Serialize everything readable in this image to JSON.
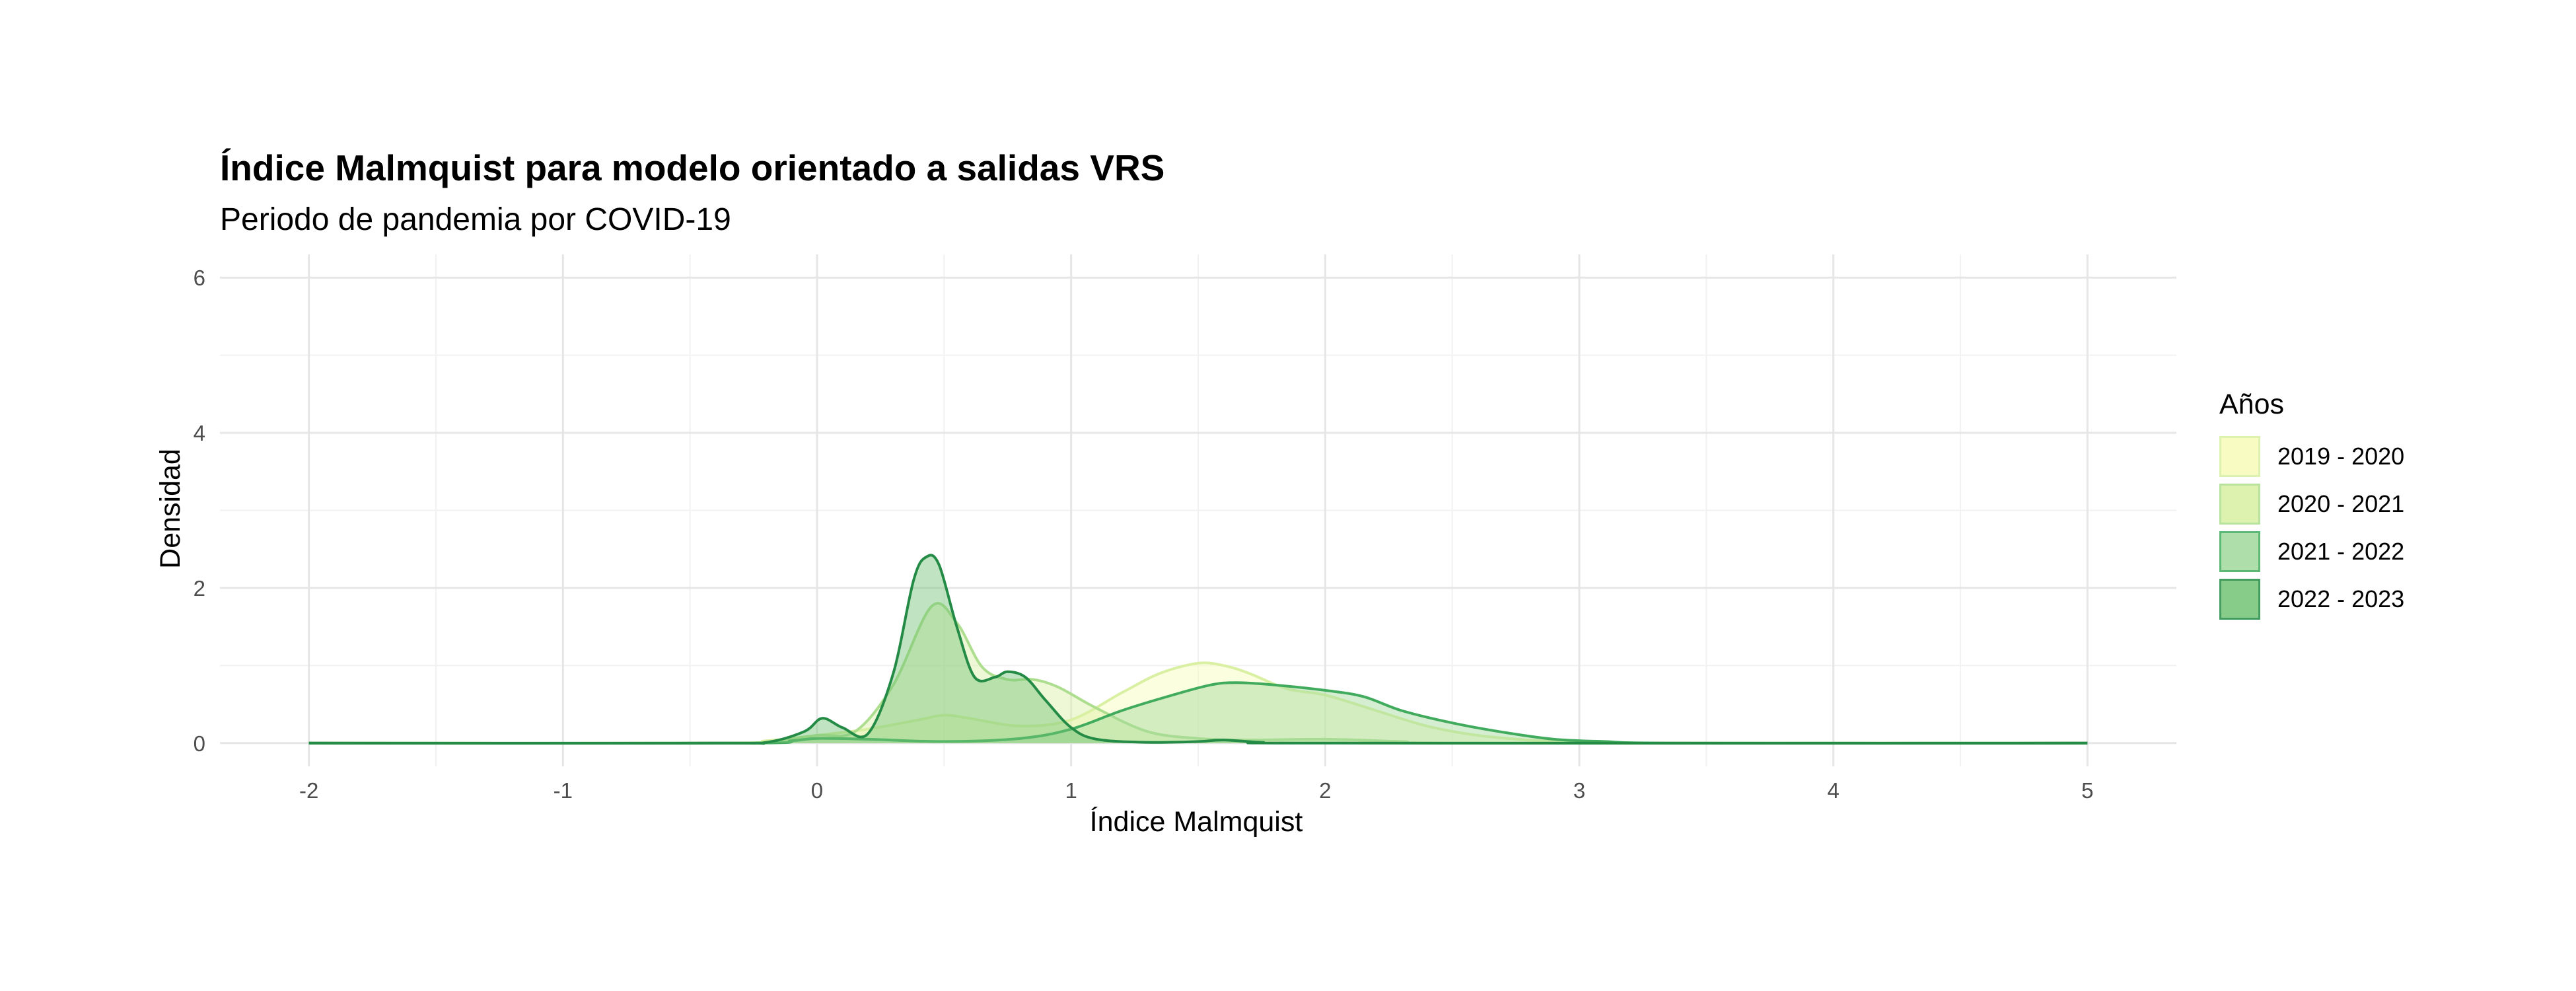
{
  "chart_data": {
    "type": "area",
    "title": "Índice Malmquist para modelo orientado a salidas VRS",
    "subtitle": "Periodo de pandemia por COVID-19",
    "xlabel": "Índice Malmquist",
    "ylabel": "Densidad",
    "xlim": [
      -2.35,
      5.35
    ],
    "ylim": [
      -0.3,
      6.3
    ],
    "x_ticks": [
      "-2",
      "-1",
      "0",
      "1",
      "2",
      "3",
      "4",
      "5"
    ],
    "y_ticks": [
      "0",
      "2",
      "4",
      "6"
    ],
    "grid": true,
    "legend_title": "Años",
    "legend_position": "right",
    "series": [
      {
        "name": "2019 - 2020",
        "line_color": "#d9f0a3",
        "fill_color": "#f7fcb9",
        "points": [
          [
            -2,
            0
          ],
          [
            -0.4,
            0
          ],
          [
            -0.2,
            0.03
          ],
          [
            0,
            0.1
          ],
          [
            0.2,
            0.18
          ],
          [
            0.4,
            0.3
          ],
          [
            0.5,
            0.36
          ],
          [
            0.6,
            0.32
          ],
          [
            0.8,
            0.22
          ],
          [
            1.0,
            0.3
          ],
          [
            1.2,
            0.65
          ],
          [
            1.35,
            0.9
          ],
          [
            1.5,
            1.03
          ],
          [
            1.6,
            1.0
          ],
          [
            1.7,
            0.9
          ],
          [
            1.85,
            0.7
          ],
          [
            2.0,
            0.62
          ],
          [
            2.2,
            0.42
          ],
          [
            2.4,
            0.22
          ],
          [
            2.6,
            0.1
          ],
          [
            2.8,
            0.04
          ],
          [
            3.0,
            0.01
          ],
          [
            3.2,
            0
          ],
          [
            5,
            0
          ]
        ]
      },
      {
        "name": "2020 - 2021",
        "line_color": "#addd8e",
        "fill_color": "#d9f0a3",
        "points": [
          [
            -2,
            0
          ],
          [
            -0.35,
            0
          ],
          [
            -0.15,
            0.04
          ],
          [
            0,
            0.1
          ],
          [
            0.15,
            0.15
          ],
          [
            0.3,
            0.75
          ],
          [
            0.45,
            1.76
          ],
          [
            0.55,
            1.55
          ],
          [
            0.65,
            0.98
          ],
          [
            0.75,
            0.82
          ],
          [
            0.85,
            0.82
          ],
          [
            0.95,
            0.72
          ],
          [
            1.1,
            0.45
          ],
          [
            1.3,
            0.15
          ],
          [
            1.5,
            0.06
          ],
          [
            1.7,
            0.04
          ],
          [
            2.0,
            0.05
          ],
          [
            2.3,
            0.02
          ],
          [
            2.6,
            0
          ],
          [
            5,
            0
          ]
        ]
      },
      {
        "name": "2021 - 2022",
        "line_color": "#41ab5d",
        "fill_color": "#a1d99b",
        "points": [
          [
            -2,
            0
          ],
          [
            -0.3,
            0
          ],
          [
            -0.1,
            0.03
          ],
          [
            0,
            0.06
          ],
          [
            0.2,
            0.05
          ],
          [
            0.5,
            0.02
          ],
          [
            0.8,
            0.06
          ],
          [
            1.0,
            0.18
          ],
          [
            1.2,
            0.42
          ],
          [
            1.4,
            0.62
          ],
          [
            1.55,
            0.75
          ],
          [
            1.65,
            0.78
          ],
          [
            1.8,
            0.75
          ],
          [
            2.0,
            0.68
          ],
          [
            2.15,
            0.6
          ],
          [
            2.3,
            0.42
          ],
          [
            2.5,
            0.26
          ],
          [
            2.7,
            0.14
          ],
          [
            2.9,
            0.05
          ],
          [
            3.1,
            0.02
          ],
          [
            3.4,
            0
          ],
          [
            5,
            0
          ]
        ]
      },
      {
        "name": "2022 - 2023",
        "line_color": "#238b45",
        "fill_color": "#74c476",
        "points": [
          [
            -2,
            0
          ],
          [
            -0.4,
            0
          ],
          [
            -0.2,
            0.01
          ],
          [
            -0.05,
            0.15
          ],
          [
            0.02,
            0.32
          ],
          [
            0.1,
            0.2
          ],
          [
            0.2,
            0.12
          ],
          [
            0.3,
            0.9
          ],
          [
            0.38,
            2.1
          ],
          [
            0.43,
            2.4
          ],
          [
            0.48,
            2.3
          ],
          [
            0.55,
            1.5
          ],
          [
            0.62,
            0.85
          ],
          [
            0.7,
            0.85
          ],
          [
            0.75,
            0.92
          ],
          [
            0.82,
            0.85
          ],
          [
            0.9,
            0.55
          ],
          [
            1.0,
            0.2
          ],
          [
            1.1,
            0.05
          ],
          [
            1.3,
            0.01
          ],
          [
            1.5,
            0.02
          ],
          [
            1.6,
            0.04
          ],
          [
            1.75,
            0.01
          ],
          [
            2.0,
            0
          ],
          [
            5,
            0
          ]
        ]
      }
    ]
  }
}
